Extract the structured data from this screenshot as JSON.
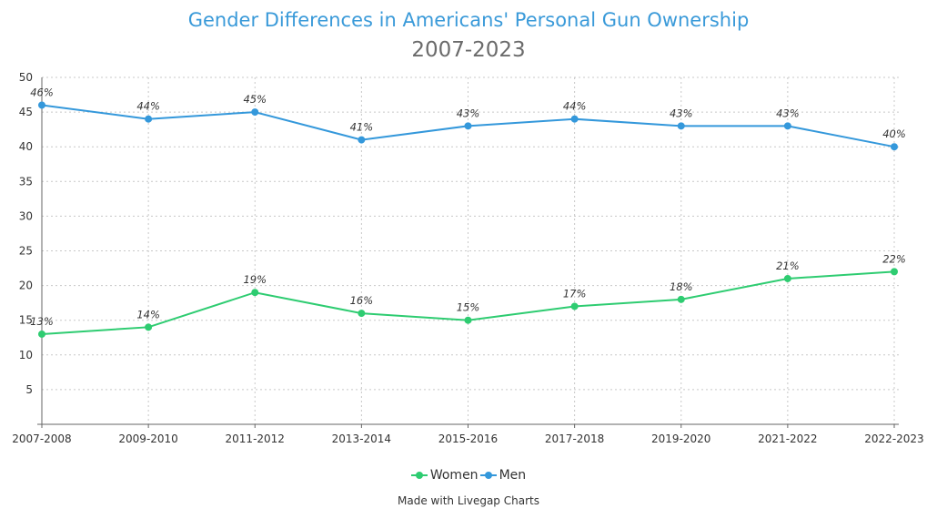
{
  "chart_data": {
    "type": "line",
    "title": "Gender Differences in Americans' Personal Gun Ownership",
    "subtitle": "2007-2023",
    "xlabel": "",
    "ylabel": "",
    "categories": [
      "2007-2008",
      "2009-2010",
      "2011-2012",
      "2013-2014",
      "2015-2016",
      "2017-2018",
      "2019-2020",
      "2021-2022",
      "2022-2023"
    ],
    "ylim": [
      0,
      50
    ],
    "yticks": [
      5,
      10,
      15,
      20,
      25,
      30,
      35,
      40,
      45,
      50
    ],
    "grid": true,
    "legend_position": "bottom",
    "series": [
      {
        "name": "Women",
        "color": "#2ecc71",
        "values": [
          13,
          14,
          19,
          16,
          15,
          17,
          18,
          21,
          22
        ],
        "labels": [
          "13%",
          "14%",
          "19%",
          "16%",
          "15%",
          "17%",
          "18%",
          "21%",
          "22%"
        ]
      },
      {
        "name": "Men",
        "color": "#3498db",
        "values": [
          46,
          44,
          45,
          41,
          43,
          44,
          43,
          43,
          40
        ],
        "labels": [
          "46%",
          "44%",
          "45%",
          "41%",
          "43%",
          "44%",
          "43%",
          "43%",
          "40%"
        ]
      }
    ]
  },
  "footer": {
    "credit": "Made with Livegap Charts"
  }
}
